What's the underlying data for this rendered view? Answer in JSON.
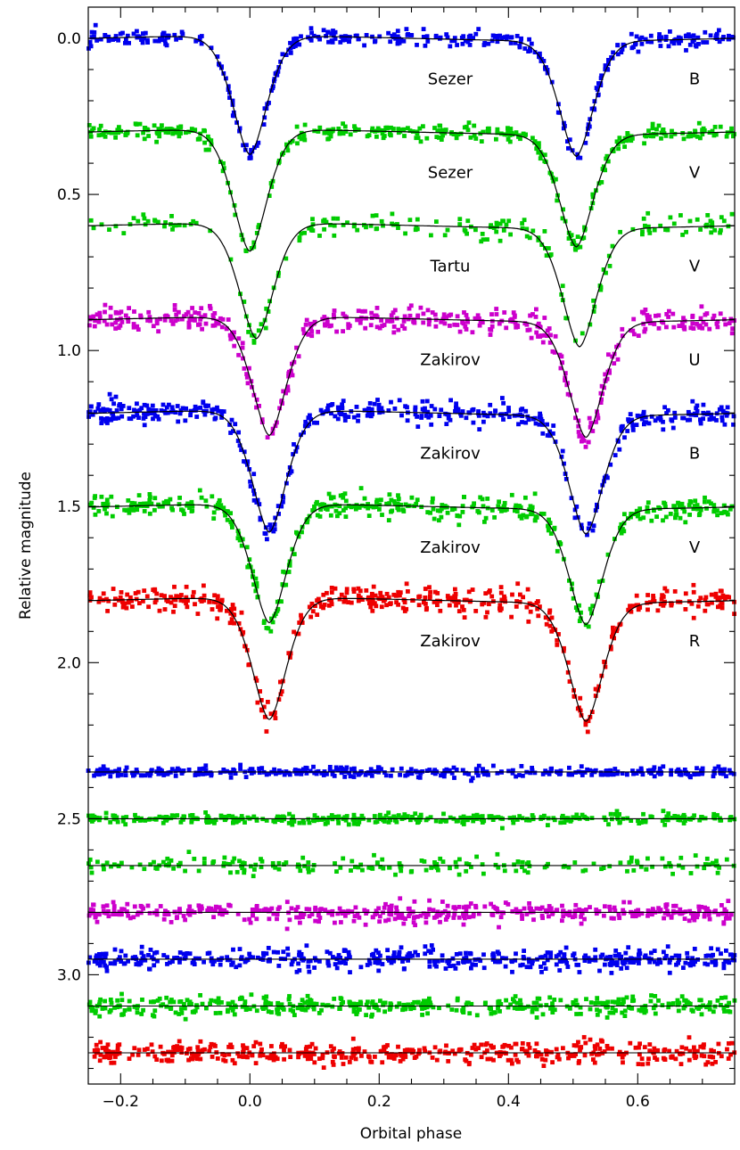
{
  "chart_data": {
    "type": "scatter",
    "title": "",
    "xlabel": "Orbital phase",
    "ylabel": "Relative magnitude",
    "xlim": [
      -0.25,
      0.75
    ],
    "ylim": [
      3.35,
      -0.1
    ],
    "y_inverted": true,
    "grid": false,
    "x_ticks": [
      {
        "value": -0.2,
        "label": "−0.2"
      },
      {
        "value": 0.0,
        "label": "0.0"
      },
      {
        "value": 0.2,
        "label": "0.2"
      },
      {
        "value": 0.4,
        "label": "0.4"
      },
      {
        "value": 0.6,
        "label": "0.6"
      }
    ],
    "y_ticks": [
      {
        "value": 0.0,
        "label": "0.0"
      },
      {
        "value": 0.5,
        "label": "0.5"
      },
      {
        "value": 1.0,
        "label": "1.0"
      },
      {
        "value": 1.5,
        "label": "1.5"
      },
      {
        "value": 2.0,
        "label": "2.0"
      },
      {
        "value": 2.5,
        "label": "2.5"
      },
      {
        "value": 3.0,
        "label": "3.0"
      }
    ],
    "model_color": "#000000",
    "light_curves": [
      {
        "source": "Sezer",
        "band": "B",
        "color": "#0000ee",
        "base": 0.0,
        "primary_phase": 0.0,
        "primary_depth": 0.38,
        "secondary_phase": 0.505,
        "secondary_depth": 0.37,
        "scatter": 0.012,
        "point_count": 380
      },
      {
        "source": "Sezer",
        "band": "V",
        "color": "#00cc00",
        "base": 0.3,
        "primary_phase": 0.0,
        "primary_depth": 0.39,
        "secondary_phase": 0.505,
        "secondary_depth": 0.36,
        "scatter": 0.012,
        "point_count": 380
      },
      {
        "source": "Tartu",
        "band": "V",
        "color": "#00cc00",
        "base": 0.6,
        "primary_phase": 0.01,
        "primary_depth": 0.37,
        "secondary_phase": 0.51,
        "secondary_depth": 0.38,
        "scatter": 0.018,
        "point_count": 200
      },
      {
        "source": "Zakirov",
        "band": "U",
        "color": "#cc00cc",
        "base": 0.9,
        "primary_phase": 0.03,
        "primary_depth": 0.38,
        "secondary_phase": 0.52,
        "secondary_depth": 0.37,
        "scatter": 0.02,
        "point_count": 450
      },
      {
        "source": "Zakirov",
        "band": "B",
        "color": "#0000ee",
        "base": 1.2,
        "primary_phase": 0.03,
        "primary_depth": 0.39,
        "secondary_phase": 0.52,
        "secondary_depth": 0.38,
        "scatter": 0.018,
        "point_count": 450
      },
      {
        "source": "Zakirov",
        "band": "V",
        "color": "#00cc00",
        "base": 1.5,
        "primary_phase": 0.03,
        "primary_depth": 0.38,
        "secondary_phase": 0.52,
        "secondary_depth": 0.37,
        "scatter": 0.018,
        "point_count": 450
      },
      {
        "source": "Zakirov",
        "band": "R",
        "color": "#ee0000",
        "base": 1.8,
        "primary_phase": 0.03,
        "primary_depth": 0.39,
        "secondary_phase": 0.52,
        "secondary_depth": 0.38,
        "scatter": 0.02,
        "point_count": 450
      }
    ],
    "residuals": [
      {
        "color": "#0000ee",
        "level": 2.35,
        "scatter": 0.008,
        "point_count": 380
      },
      {
        "color": "#00cc00",
        "level": 2.5,
        "scatter": 0.008,
        "point_count": 380
      },
      {
        "color": "#00cc00",
        "level": 2.65,
        "scatter": 0.014,
        "point_count": 200
      },
      {
        "color": "#cc00cc",
        "level": 2.8,
        "scatter": 0.016,
        "point_count": 450
      },
      {
        "color": "#0000ee",
        "level": 2.95,
        "scatter": 0.016,
        "point_count": 450
      },
      {
        "color": "#00cc00",
        "level": 3.1,
        "scatter": 0.015,
        "point_count": 450
      },
      {
        "color": "#ee0000",
        "level": 3.25,
        "scatter": 0.017,
        "point_count": 450
      }
    ]
  }
}
